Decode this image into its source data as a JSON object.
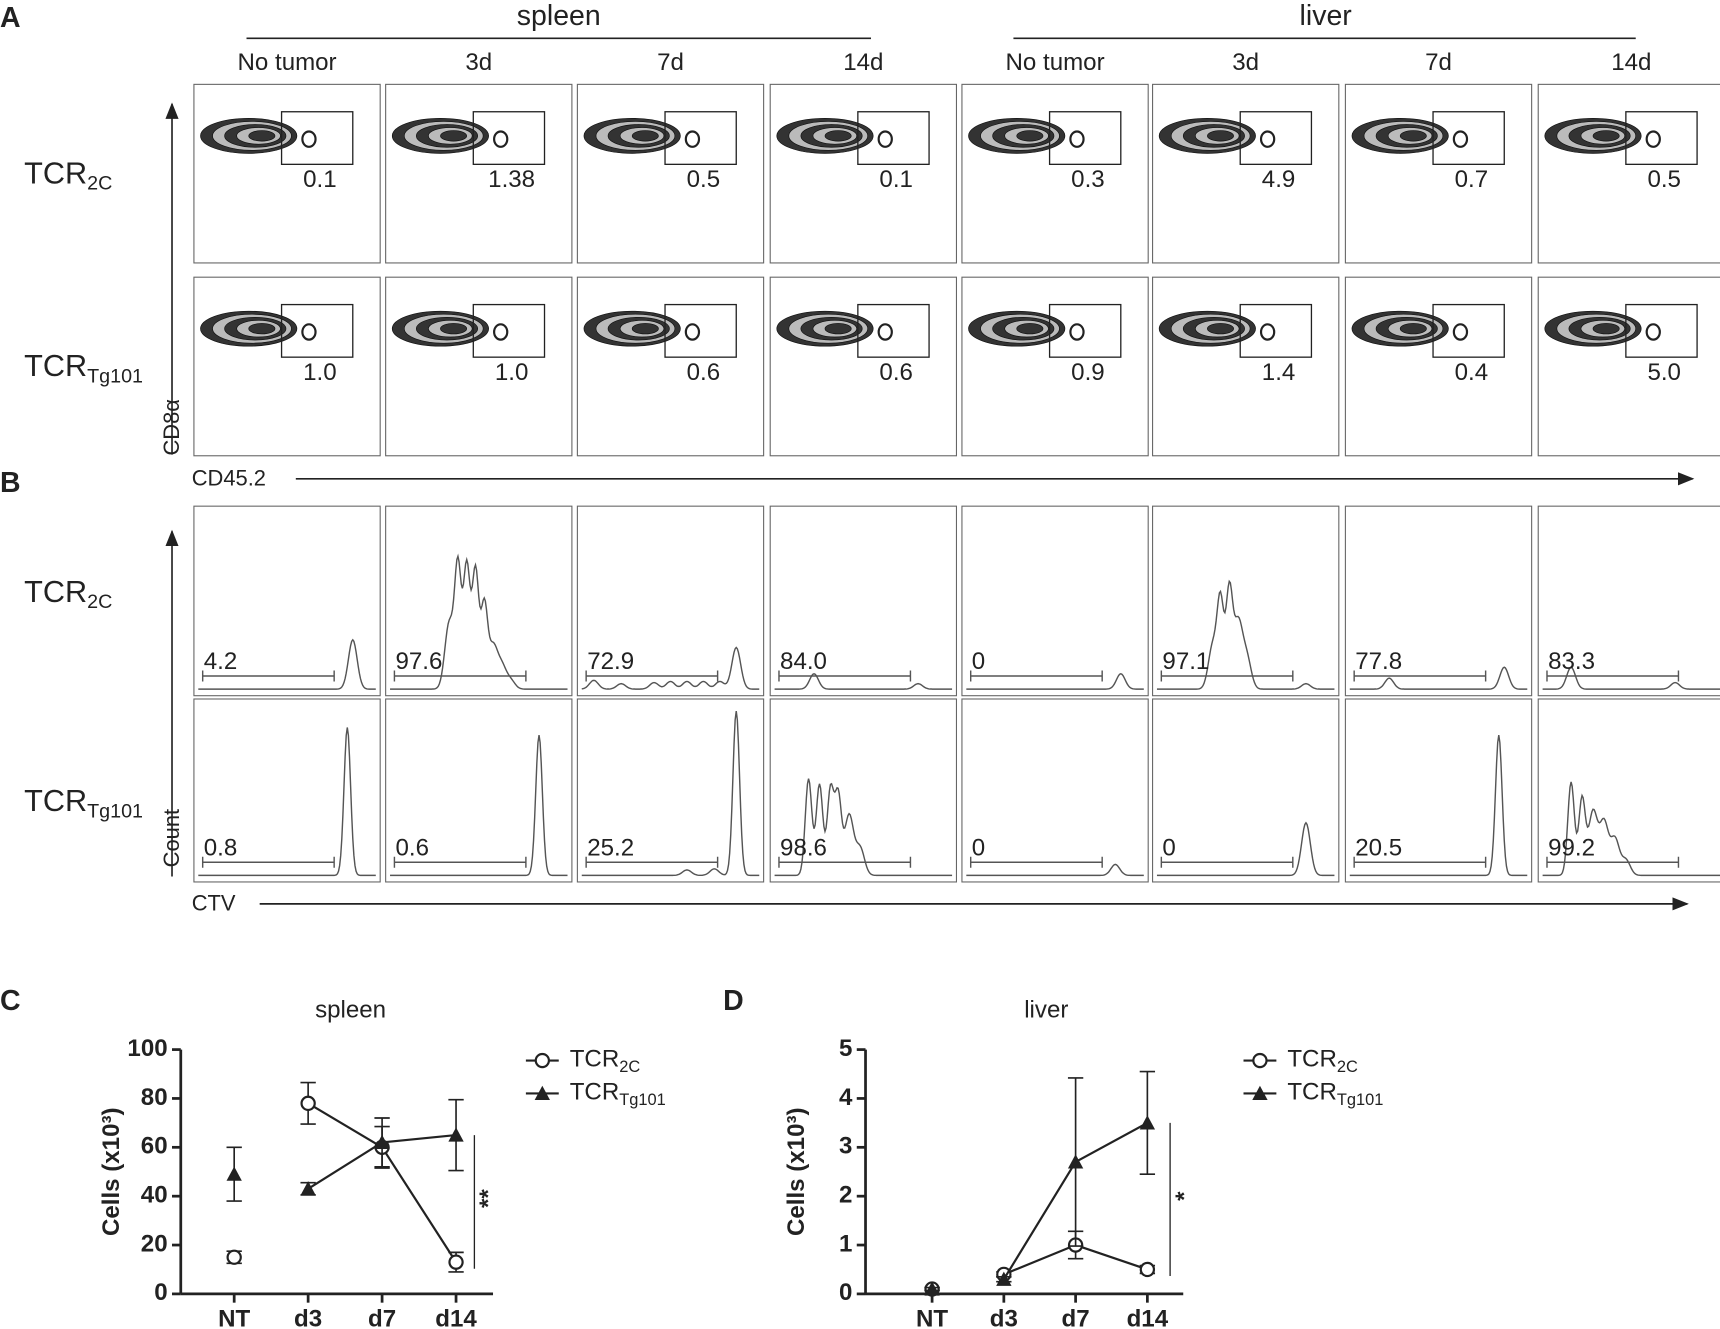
{
  "panel_a": {
    "letter": "A",
    "groups": [
      "spleen",
      "liver"
    ],
    "columns": [
      "No tumor",
      "3d",
      "7d",
      "14d",
      "No tumor",
      "3d",
      "7d",
      "14d"
    ],
    "rows": [
      {
        "label": "TCR",
        "sub": "2C",
        "values": [
          "0.1",
          "1.38",
          "0.5",
          "0.1",
          "0.3",
          "4.9",
          "0.7",
          "0.5"
        ]
      },
      {
        "label": "TCR",
        "sub": "Tg101",
        "values": [
          "1.0",
          "1.0",
          "0.6",
          "0.6",
          "0.9",
          "1.4",
          "0.4",
          "5.0"
        ]
      }
    ],
    "y_axis": "CD8α",
    "x_axis": "CD45.2"
  },
  "panel_b": {
    "letter": "B",
    "rows": [
      {
        "label": "TCR",
        "sub": "2C",
        "values": [
          "4.2",
          "97.6",
          "72.9",
          "84.0",
          "0",
          "97.1",
          "77.8",
          "83.3"
        ]
      },
      {
        "label": "TCR",
        "sub": "Tg101",
        "values": [
          "0.8",
          "0.6",
          "25.2",
          "98.6",
          "0",
          "0",
          "20.5",
          "99.2"
        ]
      }
    ],
    "y_axis": "Count",
    "x_axis": "CTV"
  },
  "chart_data": [
    {
      "letter": "C",
      "type": "line",
      "title": "spleen",
      "y_label": "Cells (x10³)",
      "categories": [
        "NT",
        "d3",
        "d7",
        "d14"
      ],
      "line_start": "d3",
      "ylim": [
        0,
        100
      ],
      "yticks": [
        0,
        20,
        40,
        60,
        80,
        100
      ],
      "series": [
        {
          "name": "TCR",
          "subscript": "2C",
          "marker": "circle-open",
          "color": "#222222",
          "values": [
            15,
            78,
            60,
            13
          ],
          "errors": [
            2.5,
            8.5,
            8.5,
            4
          ]
        },
        {
          "name": "TCR",
          "subscript": "Tg101",
          "marker": "triangle",
          "color": "#222222",
          "values": [
            49,
            43,
            62,
            65
          ],
          "errors": [
            11,
            2.5,
            10,
            14.5
          ]
        }
      ],
      "annotation": {
        "text": "**",
        "category": "d14"
      }
    },
    {
      "letter": "D",
      "type": "line",
      "title": "liver",
      "y_label": "Cells (x10³)",
      "categories": [
        "NT",
        "d3",
        "d7",
        "d14"
      ],
      "line_start": "d3",
      "ylim": [
        0,
        5
      ],
      "yticks": [
        0,
        1,
        2,
        3,
        4,
        5
      ],
      "series": [
        {
          "name": "TCR",
          "subscript": "2C",
          "marker": "circle-open",
          "color": "#222222",
          "values": [
            0.1,
            0.4,
            1.0,
            0.5
          ],
          "errors": [
            0.03,
            0.05,
            0.28,
            0.08
          ]
        },
        {
          "name": "TCR",
          "subscript": "Tg101",
          "marker": "triangle",
          "color": "#222222",
          "values": [
            0.1,
            0.3,
            2.7,
            3.5
          ],
          "errors": [
            0.03,
            0.05,
            1.72,
            1.05
          ]
        }
      ],
      "annotation": {
        "text": "*",
        "category": "d14"
      }
    }
  ]
}
